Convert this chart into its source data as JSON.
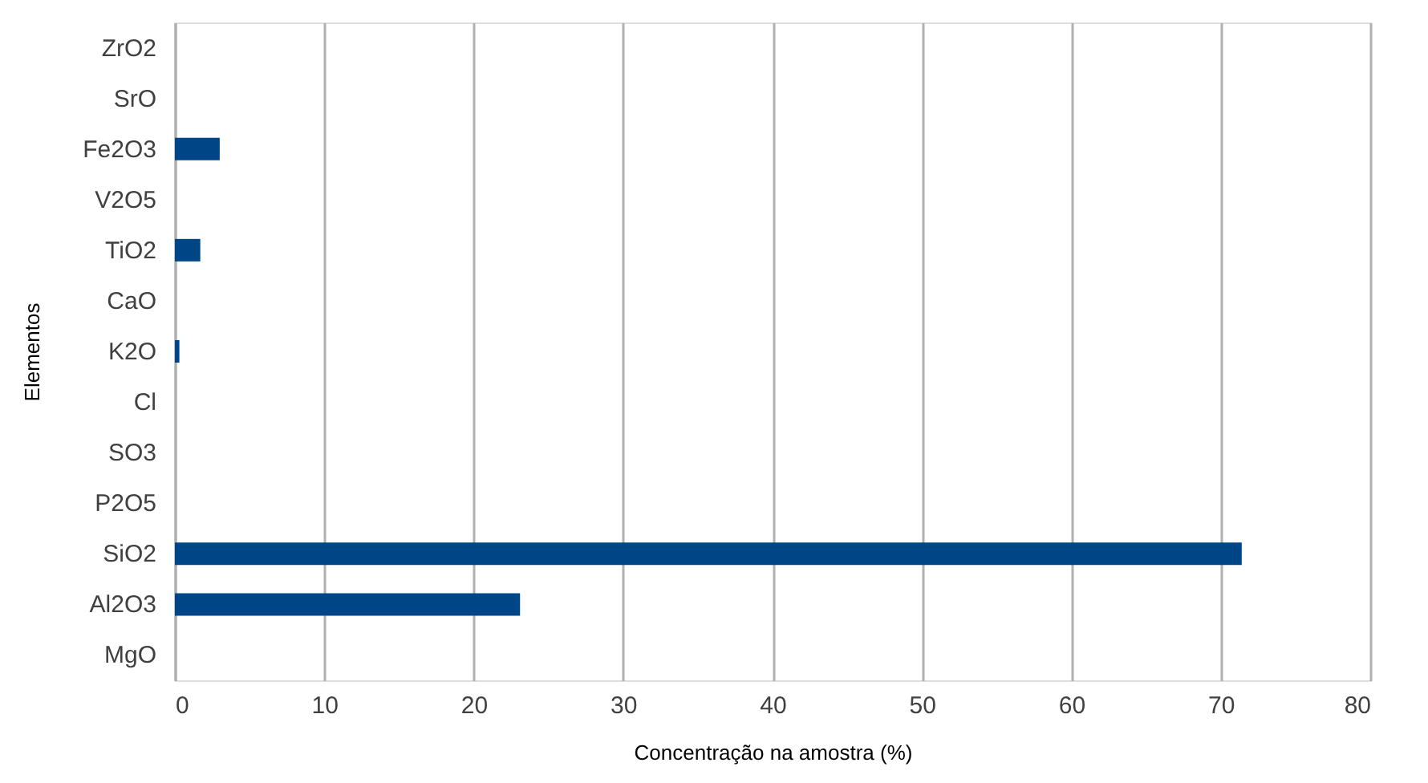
{
  "chart_data": {
    "type": "bar",
    "orientation": "horizontal",
    "xlabel": "Concentração na amostra (%)",
    "ylabel": "Elementos",
    "categories": [
      "ZrO2",
      "SrO",
      "Fe2O3",
      "V2O5",
      "TiO2",
      "CaO",
      "K2O",
      "Cl",
      "SO3",
      "P2O5",
      "SiO2",
      "Al2O3",
      "MgO"
    ],
    "values": [
      0,
      0,
      3.0,
      0,
      1.7,
      0,
      0.3,
      0,
      0,
      0,
      71.4,
      23.1,
      0
    ],
    "color": "#004586",
    "xlim": [
      0,
      80
    ],
    "xticks": [
      0,
      10,
      20,
      30,
      40,
      50,
      60,
      70,
      80
    ],
    "grid": "x"
  }
}
